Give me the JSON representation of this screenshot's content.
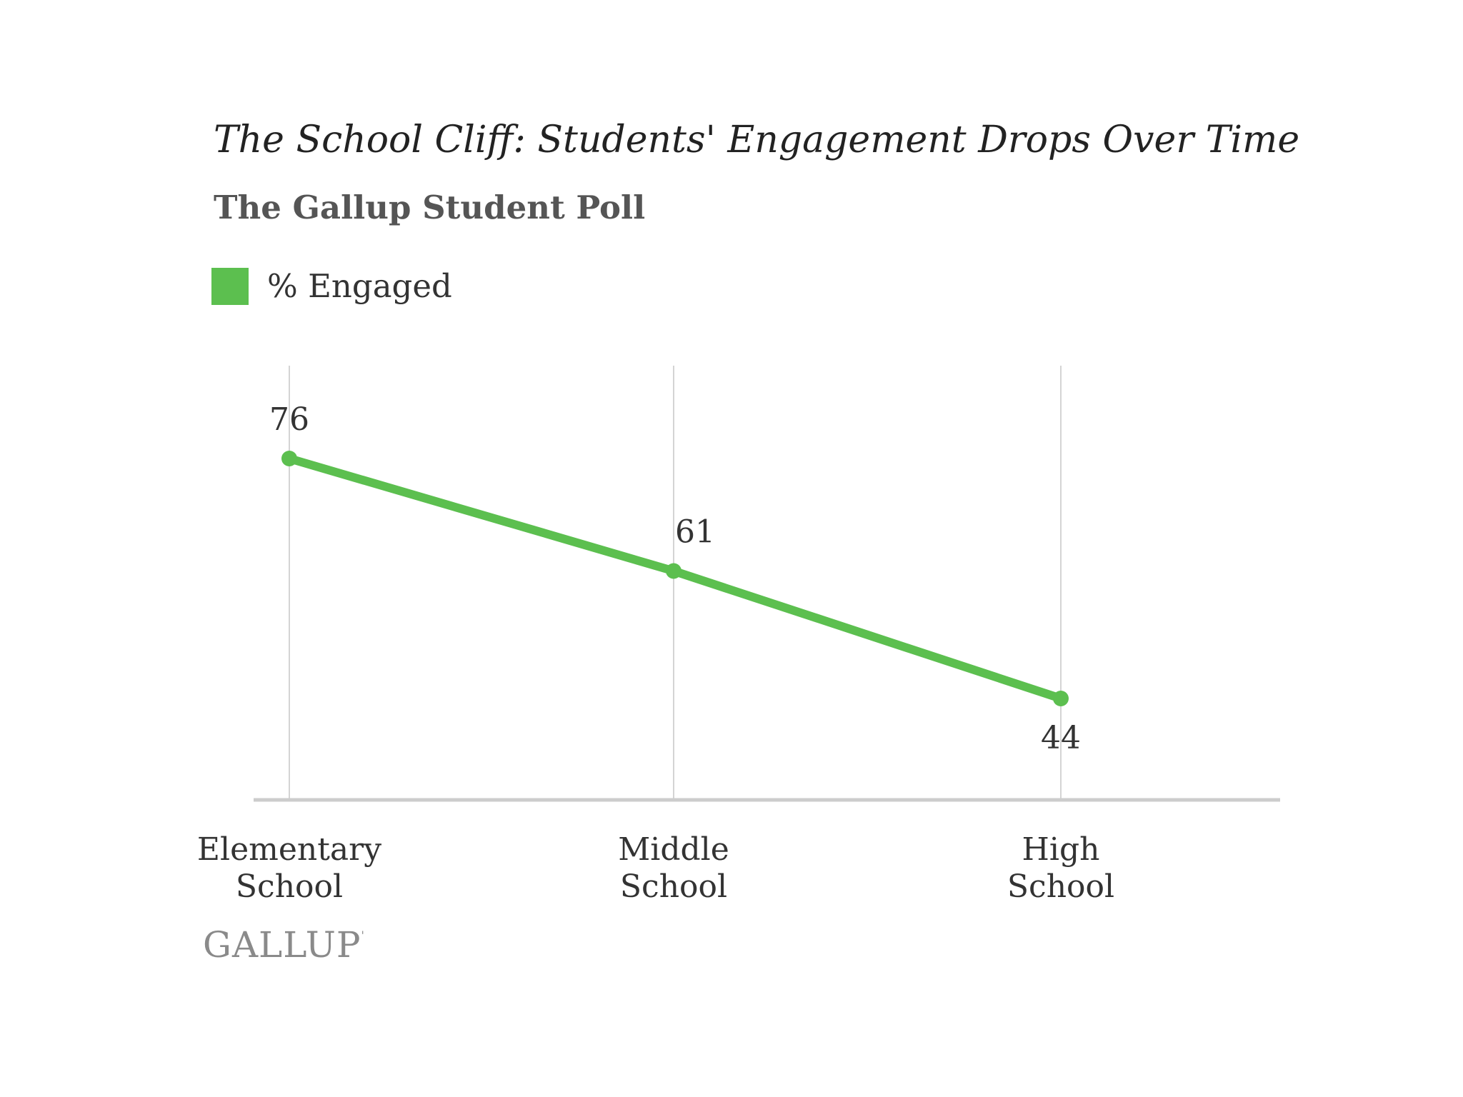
{
  "colors": {
    "series": "#5cbf4f",
    "gridline": "#d4d4d4",
    "axis": "#cccccc",
    "text": "#333333",
    "logo": "#8a8a8a"
  },
  "footer": {
    "logo_text": "GALLUP",
    "logo_mark": "'"
  },
  "chart_data": {
    "type": "line",
    "title": "The School Cliff: Students' Engagement Drops Over Time",
    "subtitle": "The Gallup Student Poll",
    "categories": [
      [
        "Elementary",
        "School"
      ],
      [
        "Middle",
        "School"
      ],
      [
        "High",
        "School"
      ]
    ],
    "series": [
      {
        "name": "% Engaged",
        "values": [
          76,
          61,
          44
        ],
        "data_labels": [
          "76",
          "61",
          "44"
        ]
      }
    ],
    "ylim": [
      40,
      80
    ],
    "xlabel": "",
    "ylabel": "",
    "grid": "vertical",
    "legend": "top-left"
  }
}
